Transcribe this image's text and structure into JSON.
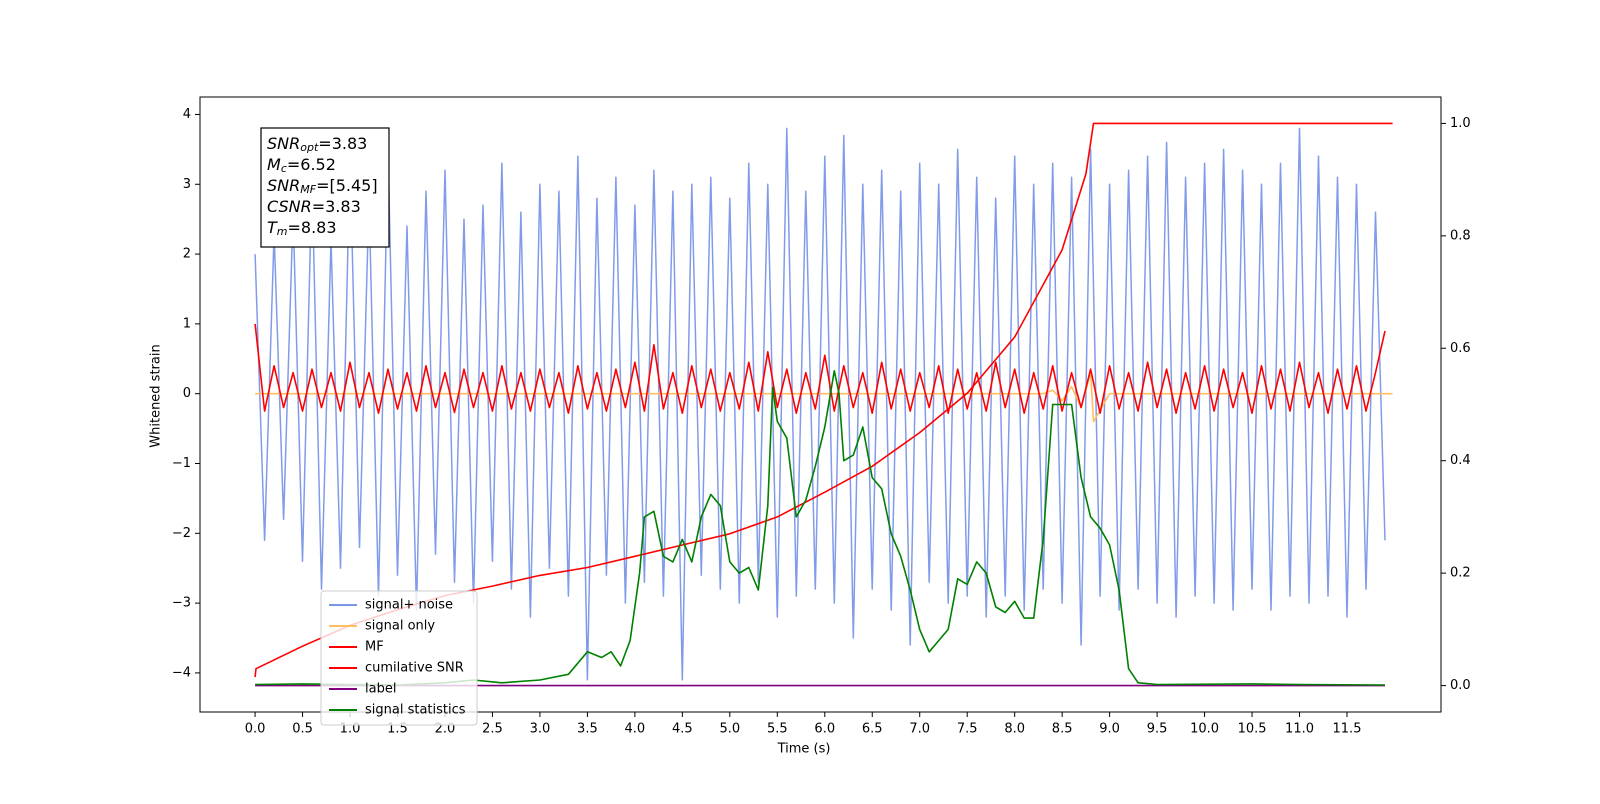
{
  "chart_data": {
    "type": "line",
    "xlabel": "Time (s)",
    "ylabel": "Whitened strain",
    "xlim": [
      -0.58,
      12.49
    ],
    "ylim": [
      -4.56,
      4.25
    ],
    "y2lim": [
      -0.047,
      1.047
    ],
    "xticks": [
      {
        "value": 0,
        "label": "0.0"
      },
      {
        "value": 0.5,
        "label": "0.5"
      },
      {
        "value": 1,
        "label": "1.0"
      },
      {
        "value": 1.5,
        "label": "1.5"
      },
      {
        "value": 2,
        "label": "2.0"
      },
      {
        "value": 2.5,
        "label": "2.5"
      },
      {
        "value": 3,
        "label": "3.0"
      },
      {
        "value": 3.5,
        "label": "3.5"
      },
      {
        "value": 4,
        "label": "4.0"
      },
      {
        "value": 4.5,
        "label": "4.5"
      },
      {
        "value": 5,
        "label": "5.0"
      },
      {
        "value": 5.5,
        "label": "5.5"
      },
      {
        "value": 6,
        "label": "6.0"
      },
      {
        "value": 6.5,
        "label": "6.5"
      },
      {
        "value": 7,
        "label": "7.0"
      },
      {
        "value": 7.5,
        "label": "7.5"
      },
      {
        "value": 8,
        "label": "8.0"
      },
      {
        "value": 8.5,
        "label": "8.5"
      },
      {
        "value": 9,
        "label": "9.0"
      },
      {
        "value": 9.5,
        "label": "9.5"
      },
      {
        "value": 10,
        "label": "10.0"
      },
      {
        "value": 10.5,
        "label": "10.5"
      },
      {
        "value": 11,
        "label": "11.0"
      },
      {
        "value": 11.5,
        "label": "11.5"
      }
    ],
    "yticks": [
      {
        "value": -4,
        "label": "−4"
      },
      {
        "value": -3,
        "label": "−3"
      },
      {
        "value": -2,
        "label": "−2"
      },
      {
        "value": -1,
        "label": "−1"
      },
      0,
      1,
      2,
      3,
      4
    ],
    "y2ticks": [
      {
        "value": 0,
        "label": "0.0"
      },
      {
        "value": 0.2,
        "label": "0.2"
      },
      {
        "value": 0.4,
        "label": "0.4"
      },
      {
        "value": 0.6,
        "label": "0.6"
      },
      {
        "value": 0.8,
        "label": "0.8"
      },
      {
        "value": 1,
        "label": "1.0"
      }
    ],
    "legend": "lower left",
    "annotations": [
      {
        "symbol": "SNR",
        "sub": "opt",
        "text": "=3.83"
      },
      {
        "symbol": "M",
        "sub": "c",
        "text": "=6.52"
      },
      {
        "symbol": "SNR",
        "sub": "MF",
        "text": "=[5.45]"
      },
      {
        "symbol": "CSNR",
        "text": "=3.83"
      },
      {
        "symbol": "T",
        "sub": "m",
        "text": "=8.83"
      }
    ],
    "series": [
      {
        "name": "signal+ noise",
        "color": "#7b96e8",
        "axis": "y",
        "x": [
          0,
          0.1,
          0.2,
          0.3,
          0.4,
          0.5,
          0.6,
          0.7,
          0.8,
          0.9,
          1,
          1.1,
          1.2,
          1.3,
          1.4,
          1.5,
          1.6,
          1.7,
          1.8,
          1.9,
          2,
          2.1,
          2.2,
          2.3,
          2.4,
          2.5,
          2.6,
          2.7,
          2.8,
          2.9,
          3,
          3.1,
          3.2,
          3.3,
          3.4,
          3.5,
          3.6,
          3.7,
          3.8,
          3.9,
          4,
          4.1,
          4.2,
          4.3,
          4.4,
          4.5,
          4.6,
          4.7,
          4.8,
          4.9,
          5,
          5.1,
          5.2,
          5.3,
          5.4,
          5.5,
          5.6,
          5.7,
          5.8,
          5.9,
          6,
          6.1,
          6.2,
          6.3,
          6.4,
          6.5,
          6.6,
          6.7,
          6.8,
          6.9,
          7,
          7.1,
          7.2,
          7.3,
          7.4,
          7.5,
          7.6,
          7.7,
          7.8,
          7.9,
          8,
          8.1,
          8.2,
          8.3,
          8.4,
          8.5,
          8.6,
          8.7,
          8.8,
          8.9,
          9,
          9.1,
          9.2,
          9.3,
          9.4,
          9.5,
          9.6,
          9.7,
          9.8,
          9.9,
          10,
          10.1,
          10.2,
          10.3,
          10.4,
          10.5,
          10.6,
          10.7,
          10.8,
          10.9,
          11,
          11.1,
          11.2,
          11.3,
          11.4,
          11.5,
          11.6,
          11.7,
          11.8,
          11.9
        ],
        "values": [
          2.0,
          -2.1,
          2.3,
          -1.8,
          2.6,
          -2.4,
          3.1,
          -2.8,
          2.2,
          -2.5,
          3.4,
          -2.2,
          2.8,
          -2.9,
          3.5,
          -2.6,
          2.4,
          -3.1,
          2.9,
          -2.3,
          3.2,
          -2.7,
          2.5,
          -3.0,
          2.7,
          -2.4,
          3.3,
          -2.8,
          2.6,
          -3.2,
          3.0,
          -2.5,
          2.9,
          -2.9,
          3.4,
          -4.1,
          2.8,
          -2.6,
          3.1,
          -3.0,
          2.7,
          -2.7,
          3.2,
          -2.9,
          2.9,
          -4.1,
          3.0,
          -2.6,
          3.1,
          -2.8,
          2.8,
          -3.0,
          3.3,
          -2.7,
          3.0,
          -3.2,
          3.8,
          -2.9,
          2.9,
          -2.8,
          3.4,
          -3.0,
          3.7,
          -3.5,
          3.0,
          -2.8,
          3.2,
          -3.1,
          2.9,
          -3.6,
          3.3,
          -2.7,
          3.0,
          -3.0,
          3.5,
          -2.9,
          3.1,
          -3.2,
          2.8,
          -2.9,
          3.4,
          -3.1,
          3.0,
          -2.8,
          3.3,
          -3.0,
          3.1,
          -3.6,
          3.5,
          -2.9,
          3.0,
          -3.1,
          3.2,
          -2.8,
          3.4,
          -3.0,
          3.6,
          -3.2,
          3.1,
          -2.9,
          3.3,
          -3.0,
          3.5,
          -3.1,
          3.2,
          -2.8,
          3.0,
          -3.1,
          3.3,
          -2.9,
          3.8,
          -3.0,
          3.4,
          -2.9,
          3.1,
          -3.2,
          3.0,
          -2.8,
          2.6,
          -2.1
        ]
      },
      {
        "name": "signal only",
        "color": "#ffbf60",
        "axis": "y",
        "x": [
          0,
          8.3,
          8.4,
          8.5,
          8.6,
          8.7,
          8.8,
          8.83,
          9.0,
          11.98
        ],
        "values": [
          0,
          0,
          0.05,
          -0.1,
          0.1,
          -0.2,
          0.3,
          -0.4,
          0,
          0
        ]
      },
      {
        "name": "MF",
        "color": "#ff0000",
        "axis": "y",
        "x": [
          0,
          0.1,
          0.2,
          0.3,
          0.4,
          0.5,
          0.6,
          0.7,
          0.8,
          0.9,
          1,
          1.1,
          1.2,
          1.3,
          1.4,
          1.5,
          1.6,
          1.7,
          1.8,
          1.9,
          2,
          2.1,
          2.2,
          2.3,
          2.4,
          2.5,
          2.6,
          2.7,
          2.8,
          2.9,
          3,
          3.1,
          3.2,
          3.3,
          3.4,
          3.5,
          3.6,
          3.7,
          3.8,
          3.9,
          4,
          4.1,
          4.2,
          4.3,
          4.4,
          4.5,
          4.6,
          4.7,
          4.8,
          4.9,
          5,
          5.1,
          5.2,
          5.3,
          5.4,
          5.5,
          5.6,
          5.7,
          5.8,
          5.9,
          6,
          6.1,
          6.2,
          6.3,
          6.4,
          6.5,
          6.6,
          6.7,
          6.8,
          6.9,
          7,
          7.1,
          7.2,
          7.3,
          7.4,
          7.5,
          7.6,
          7.7,
          7.8,
          7.9,
          8,
          8.1,
          8.2,
          8.3,
          8.4,
          8.5,
          8.6,
          8.7,
          8.8,
          8.9,
          9,
          9.1,
          9.2,
          9.3,
          9.4,
          9.5,
          9.6,
          9.7,
          9.8,
          9.9,
          10,
          10.1,
          10.2,
          10.3,
          10.4,
          10.5,
          10.6,
          10.7,
          10.8,
          10.9,
          11,
          11.1,
          11.2,
          11.3,
          11.4,
          11.5,
          11.6,
          11.7,
          11.8,
          11.9
        ],
        "values": [
          1.0,
          -0.25,
          0.4,
          -0.2,
          0.3,
          -0.25,
          0.35,
          -0.2,
          0.3,
          -0.25,
          0.45,
          -0.2,
          0.3,
          -0.28,
          0.35,
          -0.22,
          0.3,
          -0.25,
          0.4,
          -0.2,
          0.3,
          -0.27,
          0.35,
          -0.2,
          0.3,
          -0.25,
          0.4,
          -0.22,
          0.3,
          -0.25,
          0.35,
          -0.2,
          0.3,
          -0.28,
          0.4,
          -0.22,
          0.3,
          -0.25,
          0.35,
          -0.2,
          0.45,
          -0.25,
          0.7,
          -0.22,
          0.3,
          -0.28,
          0.4,
          -0.2,
          0.35,
          -0.25,
          0.3,
          -0.22,
          0.45,
          -0.25,
          0.6,
          -0.2,
          0.35,
          -0.28,
          0.3,
          -0.22,
          0.55,
          -0.25,
          0.4,
          -0.2,
          0.3,
          -0.28,
          0.45,
          -0.22,
          0.35,
          -0.25,
          0.3,
          -0.2,
          0.4,
          -0.28,
          0.35,
          -0.22,
          0.3,
          -0.25,
          0.45,
          -0.2,
          0.35,
          -0.28,
          0.3,
          -0.22,
          0.4,
          -0.25,
          0.3,
          -0.2,
          0.35,
          -0.28,
          0.4,
          -0.22,
          0.3,
          -0.25,
          0.45,
          -0.2,
          0.35,
          -0.28,
          0.3,
          -0.22,
          0.4,
          -0.25,
          0.35,
          -0.2,
          0.3,
          -0.28,
          0.4,
          -0.22,
          0.35,
          -0.25,
          0.45,
          -0.2,
          0.3,
          -0.28,
          0.35,
          -0.22,
          0.4,
          -0.25,
          0.3,
          0.9
        ]
      },
      {
        "name": "cumilative SNR",
        "color": "#ff0000",
        "axis": "y2",
        "x": [
          0,
          0.01,
          0.5,
          1,
          1.5,
          2,
          2.5,
          3,
          3.5,
          4,
          4.5,
          5,
          5.5,
          6,
          6.5,
          7,
          7.5,
          8,
          8.5,
          8.75,
          8.83,
          11.98
        ],
        "values": [
          0.015,
          0.03,
          0.07,
          0.107,
          0.135,
          0.16,
          0.177,
          0.196,
          0.21,
          0.23,
          0.25,
          0.27,
          0.3,
          0.344,
          0.39,
          0.45,
          0.52,
          0.62,
          0.775,
          0.91,
          1.0,
          1.0
        ]
      },
      {
        "name": "label",
        "color": "#800080",
        "axis": "y2",
        "x": [
          0,
          11.9
        ],
        "values": [
          0,
          0
        ]
      },
      {
        "name": "signal statistics",
        "color": "#008000",
        "axis": "y2",
        "x": [
          0,
          0.5,
          1,
          1.5,
          2,
          2.3,
          2.6,
          3,
          3.3,
          3.5,
          3.65,
          3.75,
          3.85,
          3.95,
          4.05,
          4.1,
          4.2,
          4.3,
          4.4,
          4.5,
          4.6,
          4.7,
          4.8,
          4.9,
          5.0,
          5.1,
          5.2,
          5.3,
          5.4,
          5.45,
          5.5,
          5.6,
          5.7,
          5.8,
          5.9,
          6.0,
          6.1,
          6.15,
          6.2,
          6.3,
          6.4,
          6.5,
          6.6,
          6.7,
          6.8,
          6.9,
          7.0,
          7.1,
          7.2,
          7.3,
          7.4,
          7.5,
          7.6,
          7.7,
          7.8,
          7.9,
          8.0,
          8.1,
          8.2,
          8.3,
          8.4,
          8.5,
          8.6,
          8.7,
          8.8,
          8.9,
          9.0,
          9.1,
          9.2,
          9.3,
          9.5,
          10.5,
          11.0,
          11.9
        ],
        "values": [
          0.002,
          0.003,
          0.002,
          0.001,
          0.005,
          0.01,
          0.005,
          0.01,
          0.02,
          0.06,
          0.05,
          0.06,
          0.035,
          0.08,
          0.2,
          0.3,
          0.31,
          0.23,
          0.22,
          0.26,
          0.22,
          0.3,
          0.34,
          0.32,
          0.22,
          0.2,
          0.21,
          0.17,
          0.32,
          0.53,
          0.47,
          0.44,
          0.3,
          0.33,
          0.39,
          0.46,
          0.56,
          0.52,
          0.4,
          0.41,
          0.46,
          0.37,
          0.35,
          0.27,
          0.23,
          0.17,
          0.1,
          0.06,
          0.08,
          0.1,
          0.19,
          0.18,
          0.22,
          0.2,
          0.14,
          0.13,
          0.15,
          0.12,
          0.12,
          0.26,
          0.5,
          0.5,
          0.5,
          0.37,
          0.3,
          0.28,
          0.25,
          0.17,
          0.03,
          0.005,
          0.002,
          0.003,
          0.002,
          0.001
        ]
      }
    ]
  }
}
